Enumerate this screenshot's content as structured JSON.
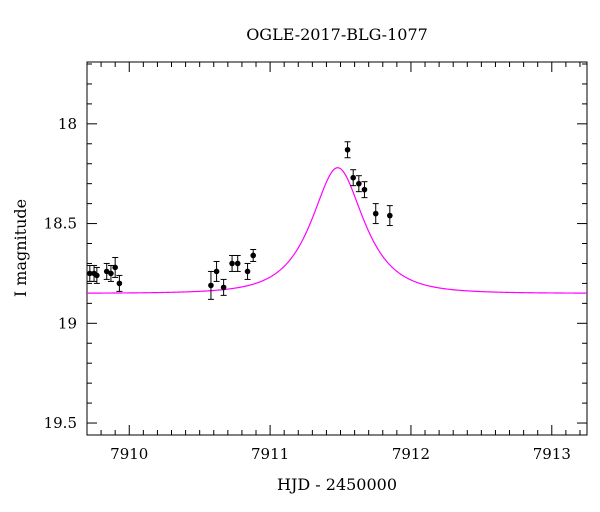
{
  "chart_data": {
    "type": "scatter",
    "title": "OGLE-2017-BLG-1077",
    "xlabel": "HJD - 2450000",
    "ylabel": "I magnitude",
    "xlim": [
      7909.7,
      7913.25
    ],
    "ylim": [
      19.56,
      17.69
    ],
    "y_inverted": true,
    "xticks": [
      7910,
      7911,
      7912,
      7913
    ],
    "xtick_labels": [
      "7910",
      "7911",
      "7912",
      "7913"
    ],
    "yticks": [
      18,
      18.5,
      19,
      19.5
    ],
    "ytick_labels": [
      "18",
      "18.5",
      "19",
      "19.5"
    ],
    "grid": false,
    "legend": "none",
    "series": [
      {
        "kind": "points",
        "color": "#000000",
        "points": [
          {
            "x": 7909.72,
            "y": 18.75,
            "err": 0.04
          },
          {
            "x": 7909.75,
            "y": 18.75,
            "err": 0.04
          },
          {
            "x": 7909.77,
            "y": 18.76,
            "err": 0.04
          },
          {
            "x": 7909.84,
            "y": 18.74,
            "err": 0.04
          },
          {
            "x": 7909.87,
            "y": 18.75,
            "err": 0.04
          },
          {
            "x": 7909.9,
            "y": 18.72,
            "err": 0.05
          },
          {
            "x": 7909.93,
            "y": 18.8,
            "err": 0.04
          },
          {
            "x": 7910.58,
            "y": 18.81,
            "err": 0.07
          },
          {
            "x": 7910.62,
            "y": 18.74,
            "err": 0.05
          },
          {
            "x": 7910.67,
            "y": 18.82,
            "err": 0.04
          },
          {
            "x": 7910.73,
            "y": 18.7,
            "err": 0.04
          },
          {
            "x": 7910.77,
            "y": 18.7,
            "err": 0.04
          },
          {
            "x": 7910.84,
            "y": 18.74,
            "err": 0.04
          },
          {
            "x": 7910.88,
            "y": 18.66,
            "err": 0.03
          },
          {
            "x": 7911.55,
            "y": 18.13,
            "err": 0.04
          },
          {
            "x": 7911.59,
            "y": 18.27,
            "err": 0.04
          },
          {
            "x": 7911.63,
            "y": 18.3,
            "err": 0.04
          },
          {
            "x": 7911.67,
            "y": 18.33,
            "err": 0.04
          },
          {
            "x": 7911.75,
            "y": 18.45,
            "err": 0.05
          },
          {
            "x": 7911.85,
            "y": 18.46,
            "err": 0.05
          }
        ]
      },
      {
        "kind": "model",
        "color": "#ff00ff",
        "baseline": 18.85,
        "peak_mag": 18.22,
        "t0": 7911.48,
        "tE": 0.28
      }
    ]
  }
}
